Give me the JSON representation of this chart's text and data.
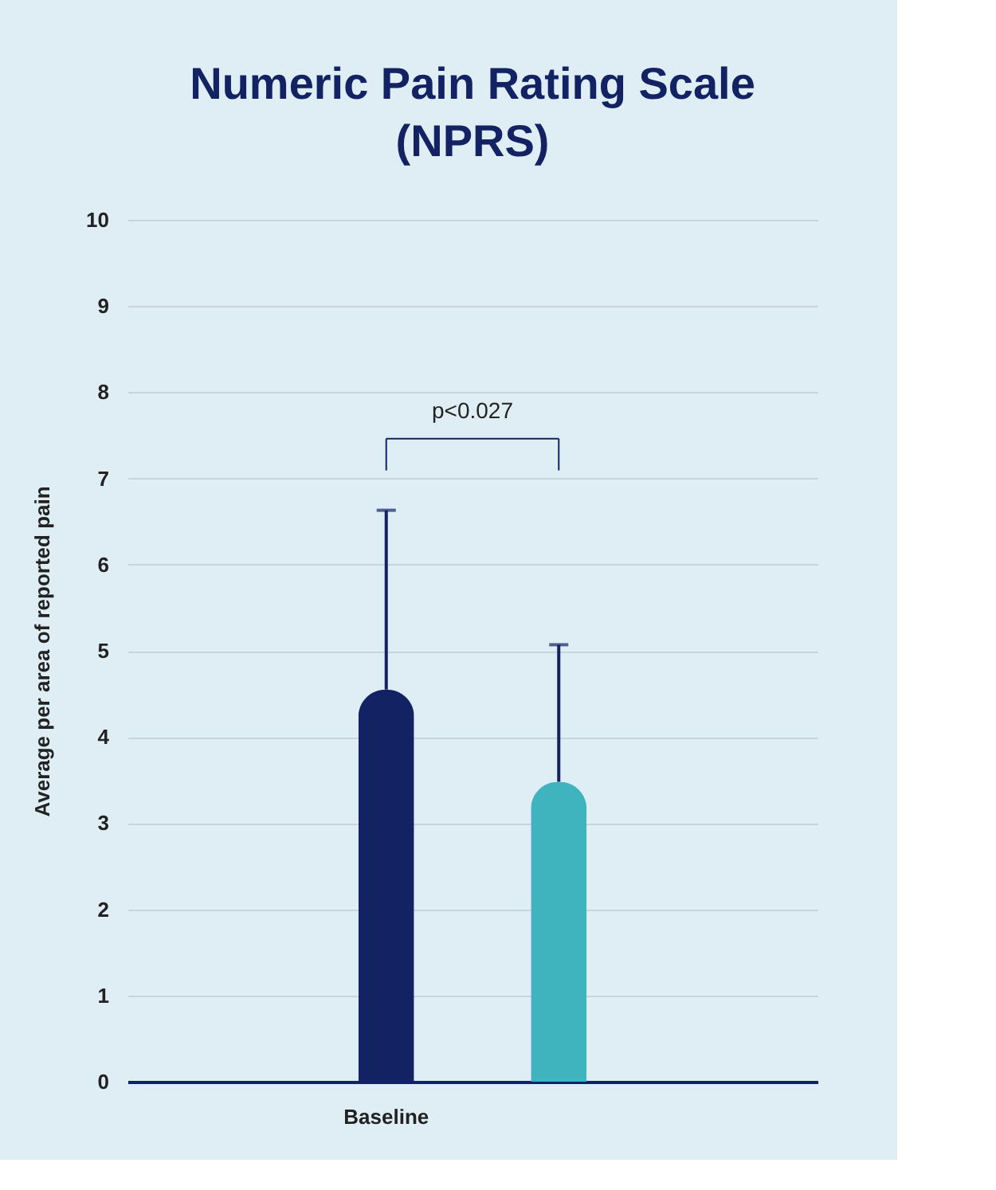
{
  "chart_data": {
    "type": "bar",
    "title": [
      "Numeric Pain Rating Scale",
      "(NPRS)"
    ],
    "ylabel": "Average  per area of reported pain",
    "categories": [
      "Baseline",
      null
    ],
    "values": [
      4.55,
      3.48
    ],
    "colors": [
      "#132263",
      "#3fb4bf"
    ],
    "errors": [
      [
        4.55,
        6.63
      ],
      [
        3.48,
        5.07
      ]
    ],
    "ylim": [
      0,
      10
    ],
    "yticks": [
      0,
      1,
      2,
      3,
      4,
      5,
      6,
      7,
      8,
      9,
      10
    ],
    "grid": "y",
    "annotations": [
      "p<0.027"
    ]
  }
}
